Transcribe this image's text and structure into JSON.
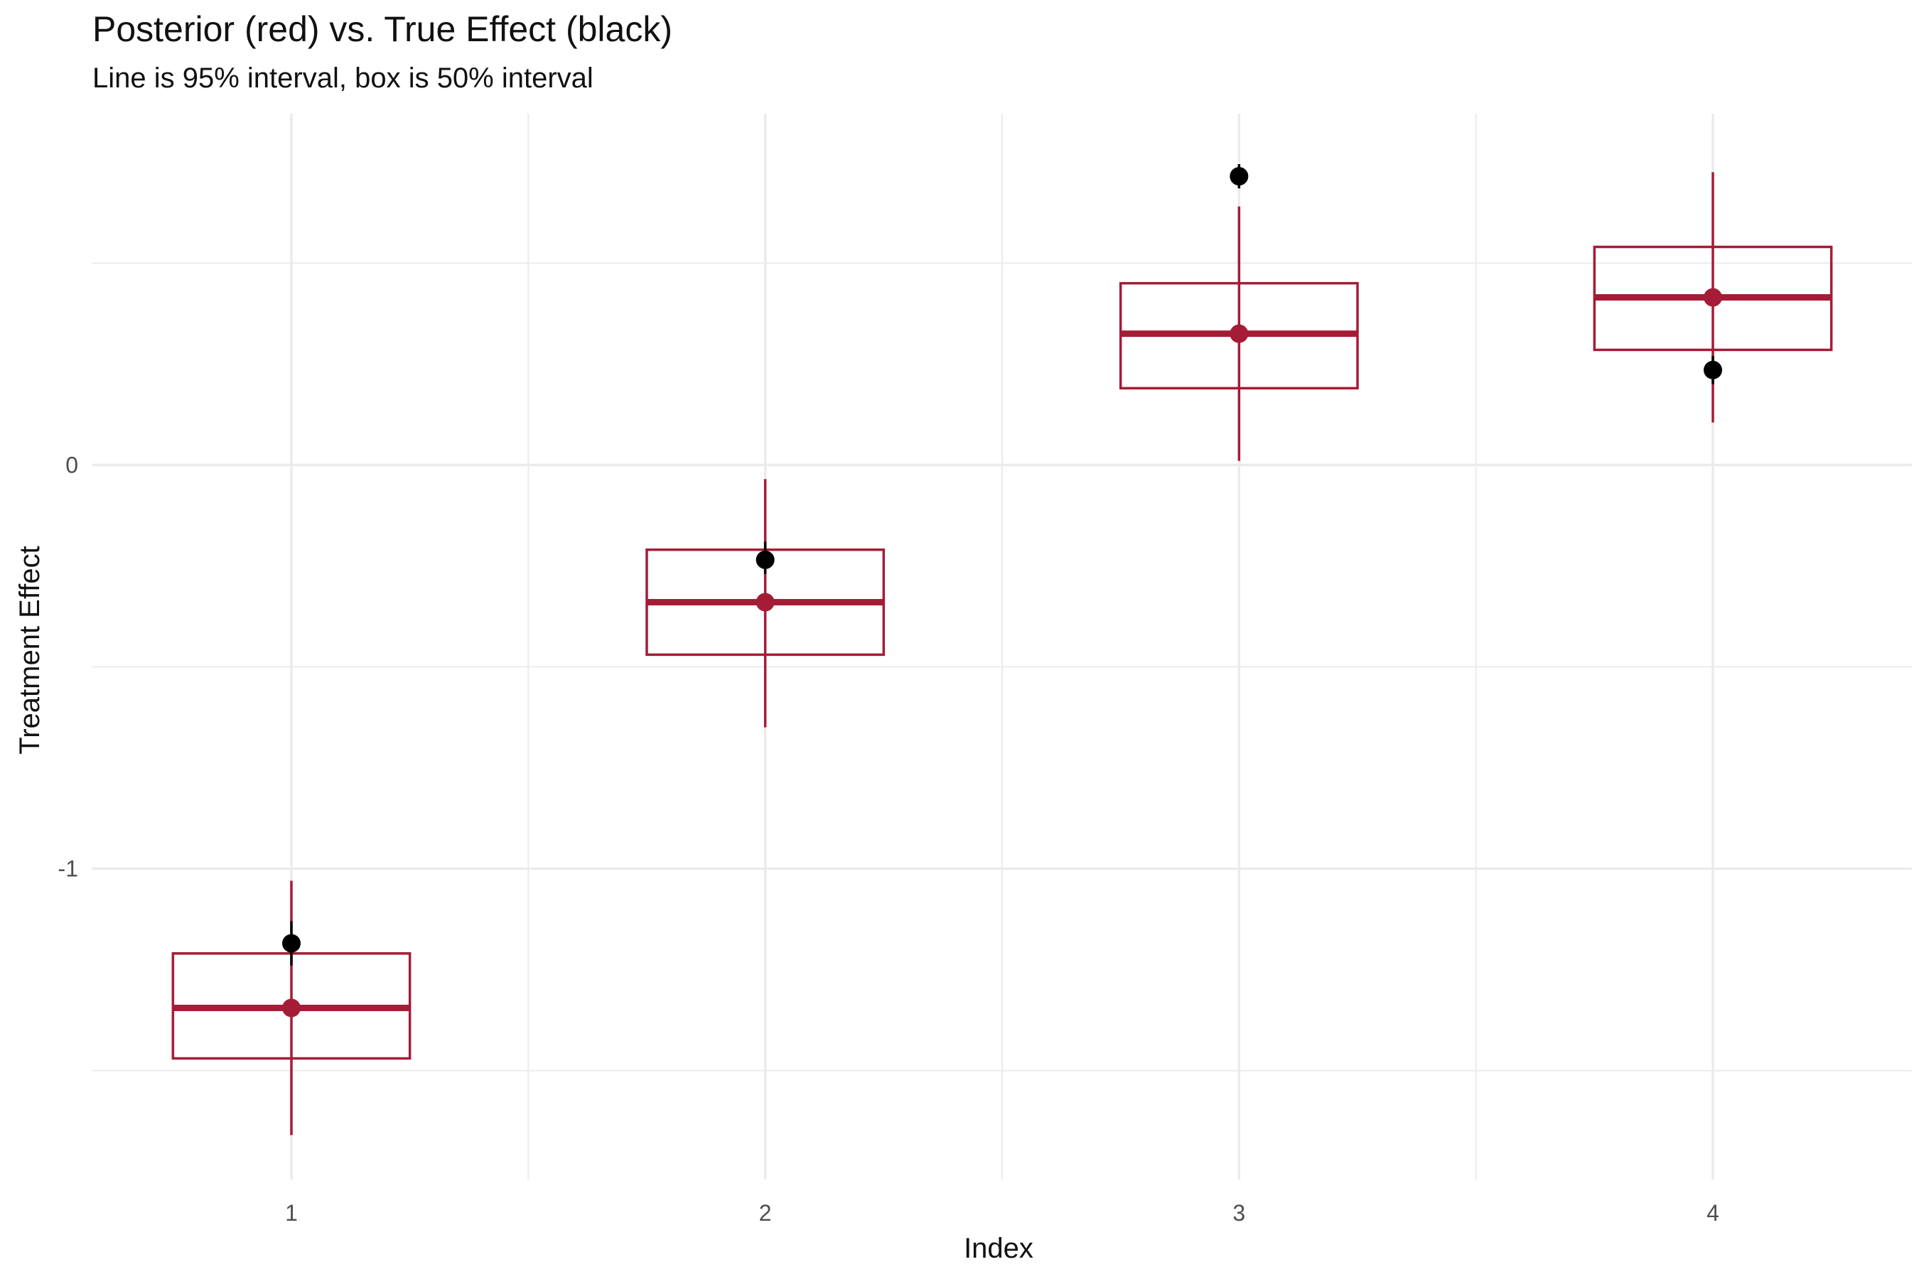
{
  "chart_data": {
    "type": "boxplot-interval",
    "title": "Posterior (red) vs. True Effect (black)",
    "subtitle": "Line is 95% interval, box is 50% interval",
    "xlabel": "Index",
    "ylabel": "Treatment Effect",
    "x_ticks": [
      "1",
      "2",
      "3",
      "4"
    ],
    "y_ticks": [
      {
        "value": 0,
        "label": "0"
      },
      {
        "value": -1,
        "label": "-1"
      }
    ],
    "xlim": [
      0.58,
      4.42
    ],
    "ylim": [
      -1.77,
      0.87
    ],
    "grid": true,
    "colors": {
      "posterior": "#A51C36",
      "true_effect": "#000000",
      "grid": "#EBEBEB"
    },
    "posterior": [
      {
        "index": 1,
        "median": -1.345,
        "q25": -1.47,
        "q75": -1.21,
        "lo95": -1.66,
        "hi95": -1.03
      },
      {
        "index": 2,
        "median": -0.34,
        "q25": -0.47,
        "q75": -0.21,
        "lo95": -0.65,
        "hi95": -0.035
      },
      {
        "index": 3,
        "median": 0.325,
        "q25": 0.19,
        "q75": 0.45,
        "lo95": 0.01,
        "hi95": 0.64
      },
      {
        "index": 4,
        "median": 0.415,
        "q25": 0.285,
        "q75": 0.54,
        "lo95": 0.105,
        "hi95": 0.725
      }
    ],
    "true_effect": [
      {
        "index": 1,
        "value": -1.185,
        "lo": -1.24,
        "hi": -1.13
      },
      {
        "index": 2,
        "value": -0.235,
        "lo": -0.27,
        "hi": -0.19
      },
      {
        "index": 3,
        "value": 0.715,
        "lo": 0.685,
        "hi": 0.745
      },
      {
        "index": 4,
        "value": 0.235,
        "lo": 0.2,
        "hi": 0.27
      }
    ]
  }
}
